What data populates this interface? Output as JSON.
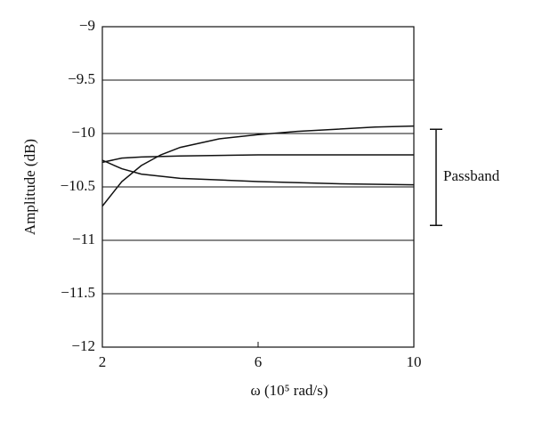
{
  "chart_data": {
    "type": "line",
    "xlabel": "ω (10⁵ rad/s)",
    "ylabel": "Amplitude (dB)",
    "xlim": [
      2,
      10
    ],
    "xticks": [
      2,
      6,
      10
    ],
    "ylim": [
      -12,
      -9
    ],
    "yticks": [
      {
        "value": -12,
        "label": "−12"
      },
      {
        "value": -11.5,
        "label": "−11.5"
      },
      {
        "value": -11,
        "label": "−11"
      },
      {
        "value": -10.5,
        "label": "−10.5"
      },
      {
        "value": -10,
        "label": "−10"
      },
      {
        "value": -9.5,
        "label": "−9.5"
      },
      {
        "value": -9,
        "label": "−9"
      }
    ],
    "grid": true,
    "series": [
      {
        "color": "#111111",
        "x": [
          2,
          2.5,
          3,
          3.5,
          4,
          5,
          6,
          7,
          8,
          9,
          10
        ],
        "values": [
          -10.68,
          -10.45,
          -10.3,
          -10.2,
          -10.13,
          -10.05,
          -10.01,
          -9.98,
          -9.96,
          -9.94,
          -9.93
        ]
      },
      {
        "color": "#111111",
        "x": [
          2,
          2.5,
          3,
          4,
          6,
          8,
          10
        ],
        "values": [
          -10.27,
          -10.23,
          -10.22,
          -10.21,
          -10.2,
          -10.2,
          -10.2
        ]
      },
      {
        "color": "#111111",
        "x": [
          2,
          2.5,
          3,
          4,
          6,
          8,
          10
        ],
        "values": [
          -10.25,
          -10.33,
          -10.38,
          -10.42,
          -10.45,
          -10.47,
          -10.48
        ]
      }
    ],
    "annotation": {
      "text": "Passband",
      "range": [
        -9.96,
        -10.86
      ]
    }
  }
}
